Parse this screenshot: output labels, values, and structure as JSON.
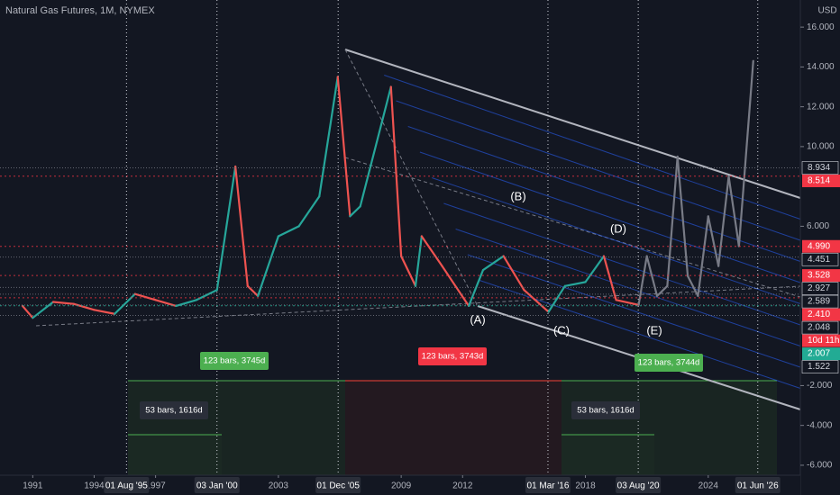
{
  "chart_data": {
    "type": "line",
    "title": "Natural Gas Futures, 1M, NYMEX",
    "currency": "USD",
    "x": [
      1990.5,
      1991,
      1992,
      1993,
      1994,
      1995,
      1996,
      1997,
      1998,
      1999,
      2000,
      2000.9,
      2001.5,
      2002,
      2003,
      2004,
      2005,
      2005.9,
      2006.5,
      2007,
      2008.5,
      2009,
      2009.7,
      2010,
      2011,
      2012.3,
      2013,
      2014,
      2015,
      2016.2,
      2017,
      2018,
      2018.9,
      2019.5,
      2020.6
    ],
    "values": [
      2.0,
      1.4,
      2.2,
      2.1,
      1.8,
      1.6,
      2.6,
      2.3,
      2.0,
      2.3,
      2.8,
      9.0,
      3.0,
      2.5,
      5.5,
      6.0,
      7.5,
      13.5,
      6.5,
      7.0,
      13.0,
      4.5,
      3.0,
      5.5,
      4.0,
      2.0,
      3.8,
      4.5,
      2.8,
      1.7,
      3.0,
      3.2,
      4.5,
      2.3,
      2.05
    ],
    "color_up": "#26a69a",
    "color_down": "#ef5350",
    "projection": {
      "x": [
        2020.6,
        2021,
        2021.5,
        2022,
        2022.5,
        2023,
        2023.5,
        2024,
        2024.5,
        2025,
        2025.5,
        2026.2
      ],
      "values": [
        2.05,
        4.5,
        2.5,
        3.0,
        9.5,
        3.5,
        2.5,
        6.5,
        4.0,
        8.5,
        5.0,
        14.3
      ],
      "color": "#787b86"
    },
    "ylim": [
      -6.5,
      17
    ],
    "yticks": [
      {
        "value": 16,
        "label": "16.000"
      },
      {
        "value": 14,
        "label": "14.000"
      },
      {
        "value": 12,
        "label": "12.000"
      },
      {
        "value": 10,
        "label": "10.000"
      },
      {
        "value": 6,
        "label": "6.000"
      },
      {
        "value": -2,
        "label": "-2.000"
      },
      {
        "value": -4,
        "label": "-4.000"
      },
      {
        "value": -6,
        "label": "-6.000"
      }
    ],
    "price_labels": [
      {
        "value": 8.934,
        "style": "plain"
      },
      {
        "value": {
          "value": 8.514,
          "label": "8.514"
        },
        "style": "red"
      },
      {
        "value": {
          "value": 4.99,
          "label": "4.990"
        },
        "style": "red"
      },
      {
        "value": 4.451,
        "style": "plain"
      },
      {
        "value": 3.528,
        "style": "red"
      },
      {
        "value": 2.927,
        "style": "plain"
      },
      {
        "value": 2.589,
        "style": "plain"
      },
      {
        "value": {
          "value": 2.41,
          "label": "2.410"
        },
        "style": "red"
      },
      {
        "value": 2.048,
        "style": "plain"
      },
      {
        "value": "10d 11h",
        "style": "red"
      },
      {
        "value": 2.007,
        "style": "green"
      },
      {
        "value": 1.522,
        "style": "plain"
      }
    ],
    "xlim": [
      1989.4,
      2028.5
    ],
    "xticks": [
      1991,
      1994,
      1997,
      2003,
      2009,
      2012,
      2018,
      2024
    ],
    "date_labels": [
      {
        "value": 1995.58,
        "label": "01 Aug '95"
      },
      {
        "value": 2000.0,
        "label": "03 Jan '00"
      },
      {
        "value": 2005.92,
        "label": "01 Dec '05"
      },
      {
        "value": 2016.17,
        "label": "01 Mar '16"
      },
      {
        "value": 2020.58,
        "label": "03 Aug '20"
      },
      {
        "value": 2026.42,
        "label": "01 Jun '26"
      }
    ],
    "waves": [
      "(A)",
      "(B)",
      "(C)",
      "(D)",
      "(E)"
    ],
    "measures": [
      "123 bars, 3745d",
      "123 bars, 3743d",
      "123 bars, 3744d",
      "53 bars, 1616d",
      "53 bars, 1616d"
    ]
  }
}
